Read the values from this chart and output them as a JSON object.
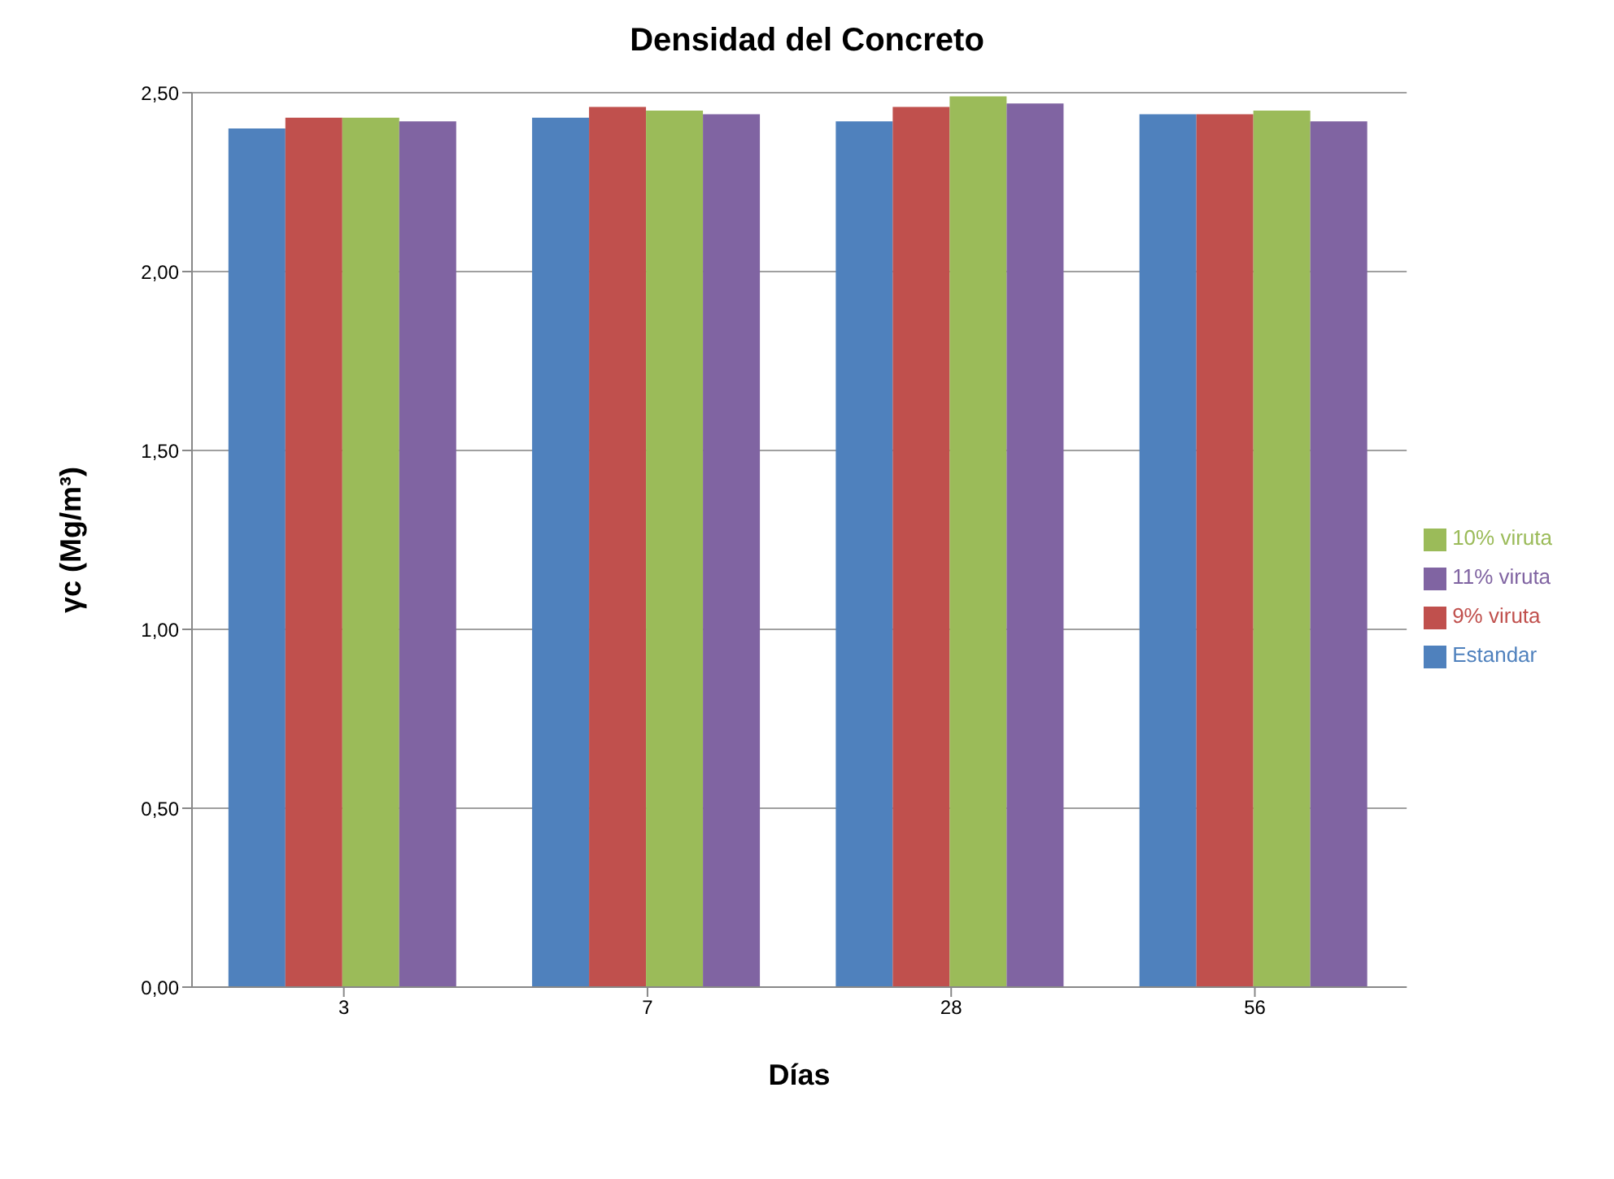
{
  "chart_data": {
    "type": "bar",
    "title": "Densidad del Concreto",
    "xlabel": "Días",
    "ylabel": "γc (Mg/m³)",
    "categories": [
      "3",
      "7",
      "28",
      "56"
    ],
    "series": [
      {
        "name": "Estandar",
        "color": "#4f81bd",
        "values": [
          2.4,
          2.43,
          2.42,
          2.44
        ]
      },
      {
        "name": "9% viruta",
        "color": "#c0504d",
        "values": [
          2.43,
          2.46,
          2.46,
          2.44
        ]
      },
      {
        "name": "10% viruta",
        "color": "#9bbb59",
        "values": [
          2.43,
          2.45,
          2.49,
          2.45
        ]
      },
      {
        "name": "11% viruta",
        "color": "#8064a2",
        "values": [
          2.42,
          2.44,
          2.47,
          2.42
        ]
      }
    ],
    "ylim": [
      0,
      2.5
    ],
    "yticks": [
      {
        "value": 0,
        "label": "0,00"
      },
      {
        "value": 0.5,
        "label": "0,50"
      },
      {
        "value": 1,
        "label": "1,00"
      },
      {
        "value": 1.5,
        "label": "1,50"
      },
      {
        "value": 2,
        "label": "2,00"
      },
      {
        "value": 2.5,
        "label": "2,50"
      }
    ],
    "grid": "y",
    "legend": "right"
  }
}
